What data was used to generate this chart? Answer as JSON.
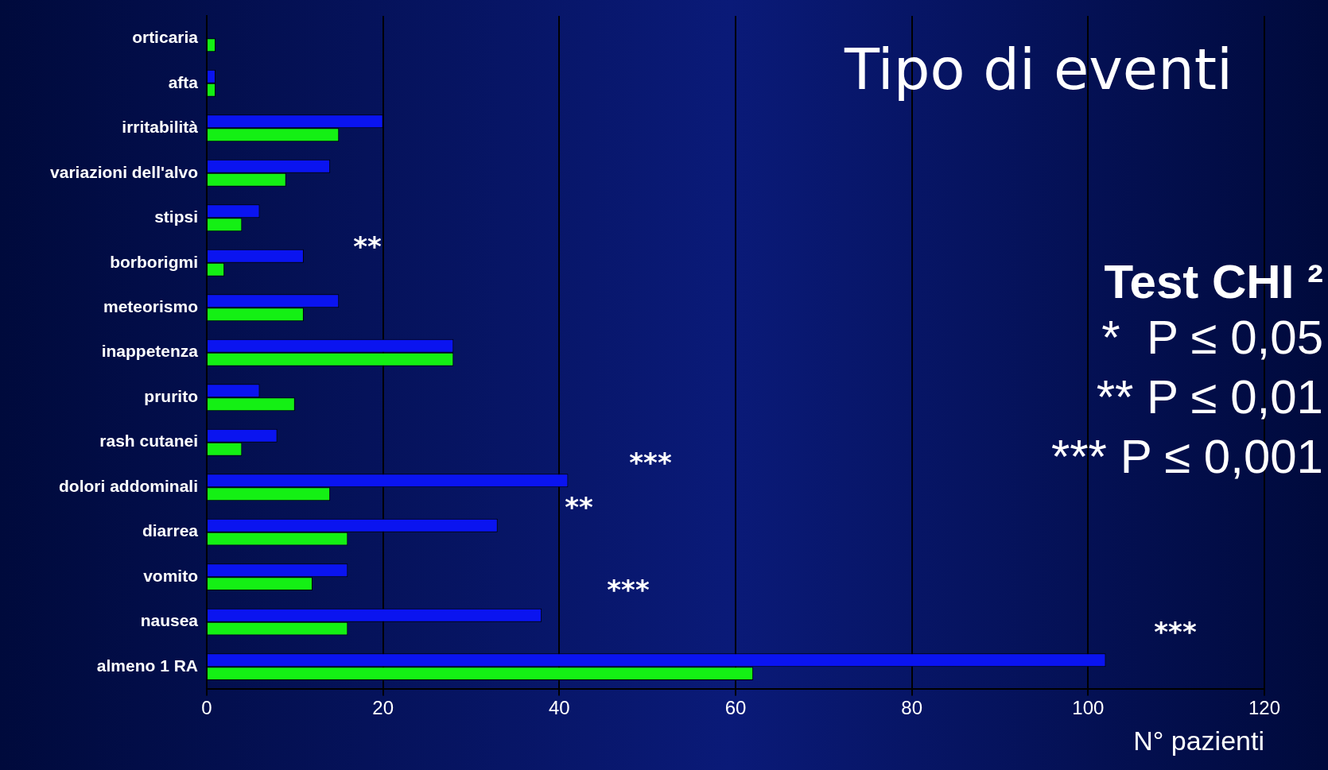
{
  "chart_data": {
    "type": "bar",
    "orientation": "horizontal",
    "title": "Tipo di eventi",
    "xlabel": "N° pazienti",
    "categories": [
      "orticaria",
      "afta",
      "irritabilità",
      "variazioni dell'alvo",
      "stipsi",
      "borborigmi",
      "meteorismo",
      "inappetenza",
      "prurito",
      "rash cutanei",
      "dolori addominali",
      "diarrea",
      "vomito",
      "nausea",
      "almeno 1 RA"
    ],
    "series": [
      {
        "color": "#0a14f0",
        "values": [
          0,
          1,
          20,
          14,
          6,
          11,
          15,
          28,
          6,
          8,
          41,
          33,
          16,
          38,
          102
        ]
      },
      {
        "color": "#14f014",
        "values": [
          1,
          1,
          15,
          9,
          4,
          2,
          11,
          28,
          10,
          4,
          14,
          16,
          12,
          16,
          62
        ]
      }
    ],
    "xlim": [
      0,
      120
    ],
    "xticks": [
      0,
      20,
      40,
      60,
      80,
      100,
      120
    ],
    "grid": "x",
    "legend": false,
    "annotations": [
      "**",
      "***",
      "**",
      "***",
      "***",
      "Test CHI ²",
      "*  P ≤ 0,05",
      "** P ≤ 0,01",
      "*** P ≤ 0,001"
    ]
  }
}
